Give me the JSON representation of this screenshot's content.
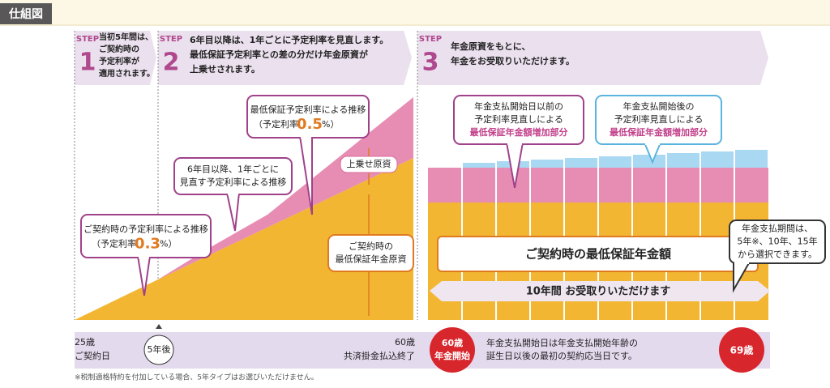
{
  "header": {
    "title": "仕組図"
  },
  "steps": [
    {
      "label": "STEP",
      "number": "1",
      "lines": [
        "当初5年間は、",
        "ご契約時の",
        "予定利率が",
        "適用されます。"
      ]
    },
    {
      "label": "STEP",
      "number": "2",
      "lines": [
        "6年目以降は、1年ごとに予定利率を見直します。",
        "最低保証予定利率との差の分だけ年金原資が",
        "上乗せされます。"
      ]
    },
    {
      "label": "STEP",
      "number": "3",
      "lines": [
        "年金原資をもとに、",
        "年金をお受取りいただけます。"
      ]
    }
  ],
  "callouts": [
    {
      "lines": [
        "最低保証予定利率による推移"
      ],
      "rate_prefix": "（予定利率",
      "rate": "0.5",
      "rate_suffix": "%）"
    },
    {
      "lines": [
        "6年目以降、1年ごとに",
        "見直す予定利率による推移"
      ]
    },
    {
      "lines": [
        "ご契約時の予定利率による推移"
      ],
      "rate_prefix": "（予定利率",
      "rate": "0.3",
      "rate_suffix": "%）"
    },
    {
      "lines": [
        "上乗せ原資"
      ]
    },
    {
      "lines": [
        "ご契約時の",
        "最低保証年金原資"
      ]
    },
    {
      "lines": [
        "年金支払開始日以前の",
        "予定利率見直しによる",
        "最低保証年金額増加部分"
      ]
    },
    {
      "lines": [
        "年金支払開始後の",
        "予定利率見直しによる",
        "最低保証年金額増加部分"
      ]
    },
    {
      "lines": [
        "ご契約時の最低保証年金額"
      ]
    },
    {
      "lines": [
        "10年間  お受取りいただけます"
      ]
    },
    {
      "lines": [
        "年金支払期間は、",
        "5年※、10年、15年",
        "から選択できます。"
      ]
    }
  ],
  "timeline": {
    "start_age": "25歳",
    "start_label": "ご契約日",
    "five_years": "5年後",
    "end_age": "60歳",
    "end_label": "共済掛金払込終了",
    "pension_age": "60歳",
    "pension_label": "年金開始",
    "note_lines": [
      "年金支払開始日は年金支払開始年齢の",
      "誕生日以後の最初の契約応当日です。"
    ],
    "final_age": "69歳"
  },
  "footnote": "※税制適格特約を付加している場合、5年タイプはお選びいただけません。"
}
